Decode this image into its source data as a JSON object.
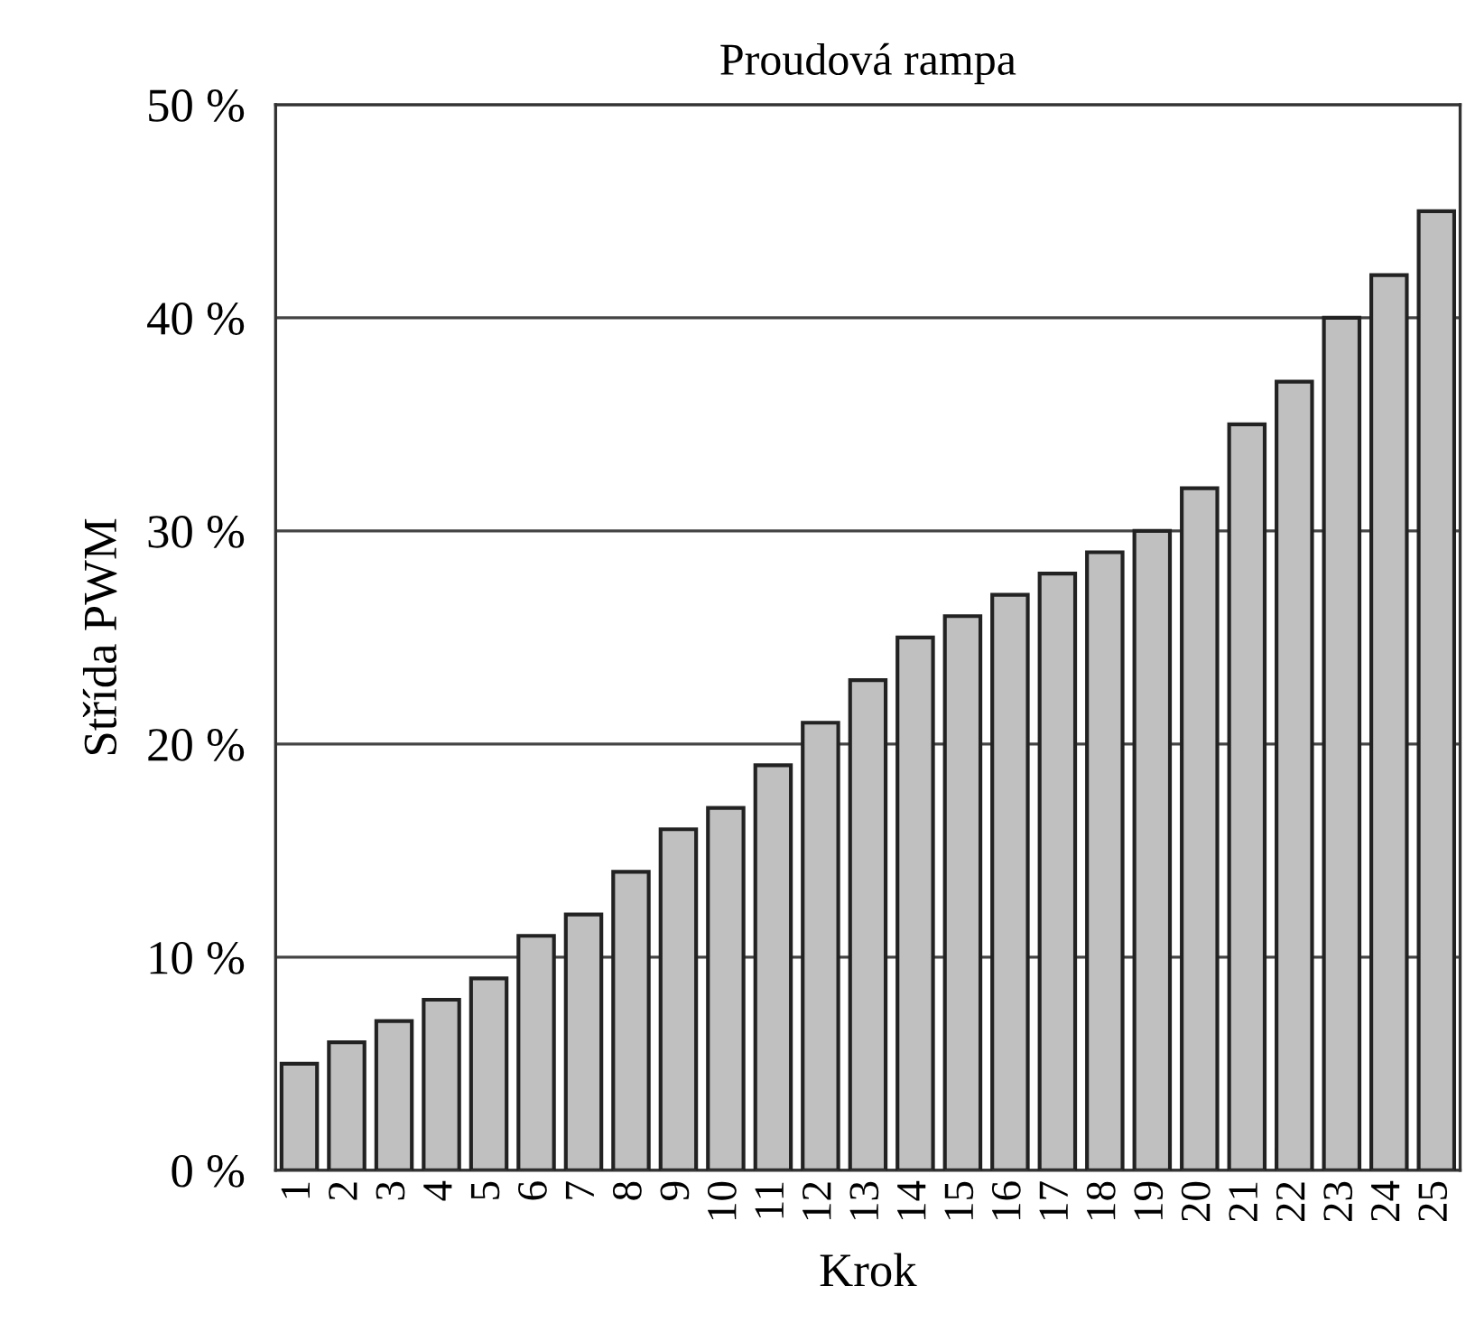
{
  "chart_data": {
    "type": "bar",
    "title": "Proudová rampa",
    "xlabel": "Krok",
    "ylabel": "Střída PWM",
    "categories": [
      "1",
      "2",
      "3",
      "4",
      "5",
      "6",
      "7",
      "8",
      "9",
      "10",
      "11",
      "12",
      "13",
      "14",
      "15",
      "16",
      "17",
      "18",
      "19",
      "20",
      "21",
      "22",
      "23",
      "24",
      "25"
    ],
    "values": [
      5,
      6,
      7,
      8,
      9,
      11,
      12,
      14,
      16,
      17,
      19,
      21,
      23,
      25,
      26,
      27,
      28,
      29,
      30,
      32,
      35,
      37,
      40,
      42,
      45
    ],
    "color": "#c0c0c0",
    "ylim": [
      0,
      50
    ],
    "yticks": [
      {
        "value": 0,
        "label": "0 %"
      },
      {
        "value": 10,
        "label": "10 %"
      },
      {
        "value": 20,
        "label": "20 %"
      },
      {
        "value": 30,
        "label": "30 %"
      },
      {
        "value": 40,
        "label": "40 %"
      },
      {
        "value": 50,
        "label": "50 %"
      }
    ],
    "grid": "y",
    "legend": false
  }
}
